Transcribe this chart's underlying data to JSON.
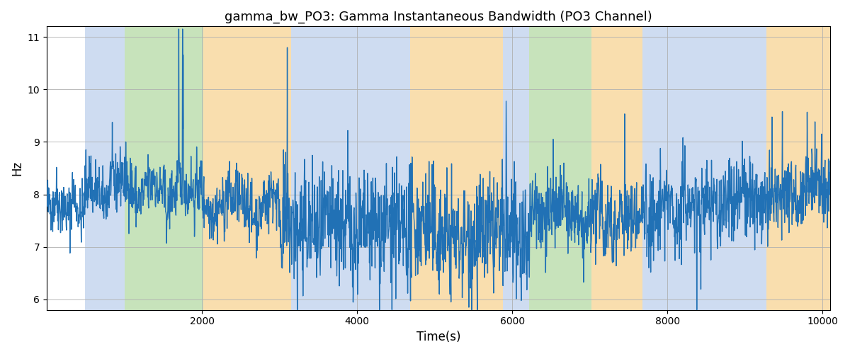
{
  "title": "gamma_bw_PO3: Gamma Instantaneous Bandwidth (PO3 Channel)",
  "xlabel": "Time(s)",
  "ylabel": "Hz",
  "xlim": [
    0,
    10100
  ],
  "ylim": [
    5.8,
    11.2
  ],
  "yticks": [
    6,
    7,
    8,
    9,
    10,
    11
  ],
  "xticks": [
    2000,
    4000,
    6000,
    8000,
    10000
  ],
  "line_color": "#2171b5",
  "line_width": 1.0,
  "grid_color": "#b0b0b0",
  "bands": [
    {
      "start": 0,
      "end": 490,
      "color": "#ffffff",
      "alpha": 1.0
    },
    {
      "start": 490,
      "end": 1000,
      "color": "#aec6e8",
      "alpha": 0.6
    },
    {
      "start": 1000,
      "end": 2020,
      "color": "#90c878",
      "alpha": 0.5
    },
    {
      "start": 2020,
      "end": 3150,
      "color": "#f5c878",
      "alpha": 0.6
    },
    {
      "start": 3150,
      "end": 4680,
      "color": "#aec6e8",
      "alpha": 0.6
    },
    {
      "start": 4680,
      "end": 5880,
      "color": "#f5c878",
      "alpha": 0.6
    },
    {
      "start": 5880,
      "end": 6220,
      "color": "#aec6e8",
      "alpha": 0.6
    },
    {
      "start": 6220,
      "end": 7020,
      "color": "#90c878",
      "alpha": 0.5
    },
    {
      "start": 7020,
      "end": 7680,
      "color": "#f5c878",
      "alpha": 0.6
    },
    {
      "start": 7680,
      "end": 9280,
      "color": "#aec6e8",
      "alpha": 0.6
    },
    {
      "start": 9280,
      "end": 10100,
      "color": "#f5c878",
      "alpha": 0.6
    }
  ],
  "seed": 42,
  "n_points": 2500,
  "t_start": 0,
  "t_end": 10100
}
